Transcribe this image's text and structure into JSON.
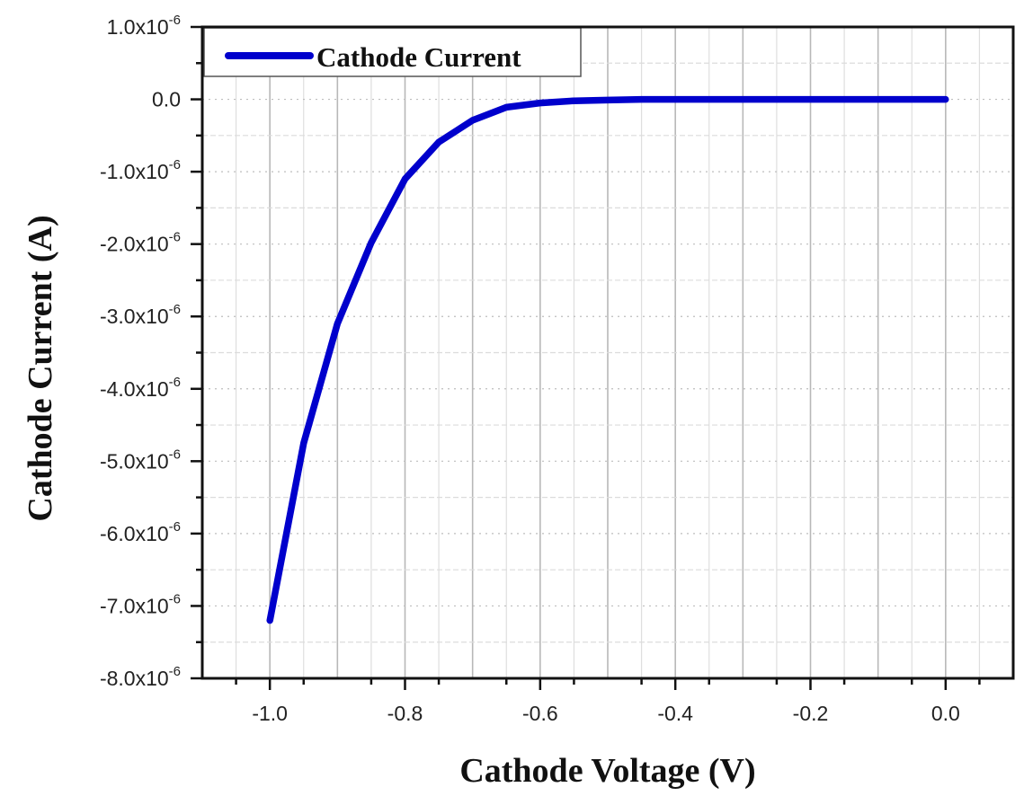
{
  "chart_data": {
    "type": "line",
    "title": "",
    "xlabel": "Cathode Voltage (V)",
    "ylabel": "Cathode Current (A)",
    "xlim": [
      -1.1,
      0.1
    ],
    "ylim": [
      -8e-06,
      1e-06
    ],
    "grid": true,
    "legend_position": "top-left",
    "x_ticks": [
      -1.0,
      -0.8,
      -0.6,
      -0.4,
      -0.2,
      0.0
    ],
    "x_tick_labels": [
      "-1.0",
      "-0.8",
      "-0.6",
      "-0.4",
      "-0.2",
      "0.0"
    ],
    "y_ticks": [
      1e-06,
      0.0,
      -1e-06,
      -2e-06,
      -3e-06,
      -4e-06,
      -5e-06,
      -6e-06,
      -7e-06,
      -8e-06
    ],
    "y_tick_labels": [
      {
        "base": "1.0x10",
        "exp": "-6"
      },
      {
        "base": "0.0",
        "exp": ""
      },
      {
        "base": "-1.0x10",
        "exp": "-6"
      },
      {
        "base": "-2.0x10",
        "exp": "-6"
      },
      {
        "base": "-3.0x10",
        "exp": "-6"
      },
      {
        "base": "-4.0x10",
        "exp": "-6"
      },
      {
        "base": "-5.0x10",
        "exp": "-6"
      },
      {
        "base": "-6.0x10",
        "exp": "-6"
      },
      {
        "base": "-7.0x10",
        "exp": "-6"
      },
      {
        "base": "-8.0x10",
        "exp": "-6"
      }
    ],
    "series": [
      {
        "name": "Cathode Current",
        "color": "#0000cc",
        "x": [
          -1.0,
          -0.95,
          -0.9,
          -0.85,
          -0.8,
          -0.75,
          -0.7,
          -0.65,
          -0.6,
          -0.55,
          -0.5,
          -0.45,
          -0.4,
          -0.35,
          -0.3,
          -0.25,
          -0.2,
          -0.15,
          -0.1,
          -0.05,
          0.0
        ],
        "y": [
          -7.2e-06,
          -4.75e-06,
          -3.1e-06,
          -1.98e-06,
          -1.1e-06,
          -5.9e-07,
          -2.9e-07,
          -1.1e-07,
          -5e-08,
          -2e-08,
          -1e-08,
          0.0,
          0.0,
          0.0,
          0.0,
          0.0,
          0.0,
          0.0,
          0.0,
          0.0,
          0.0
        ]
      }
    ]
  },
  "legend": {
    "label": "Cathode Current"
  },
  "axes": {
    "xlabel": "Cathode Voltage (V)",
    "ylabel": "Cathode Current (A)"
  }
}
